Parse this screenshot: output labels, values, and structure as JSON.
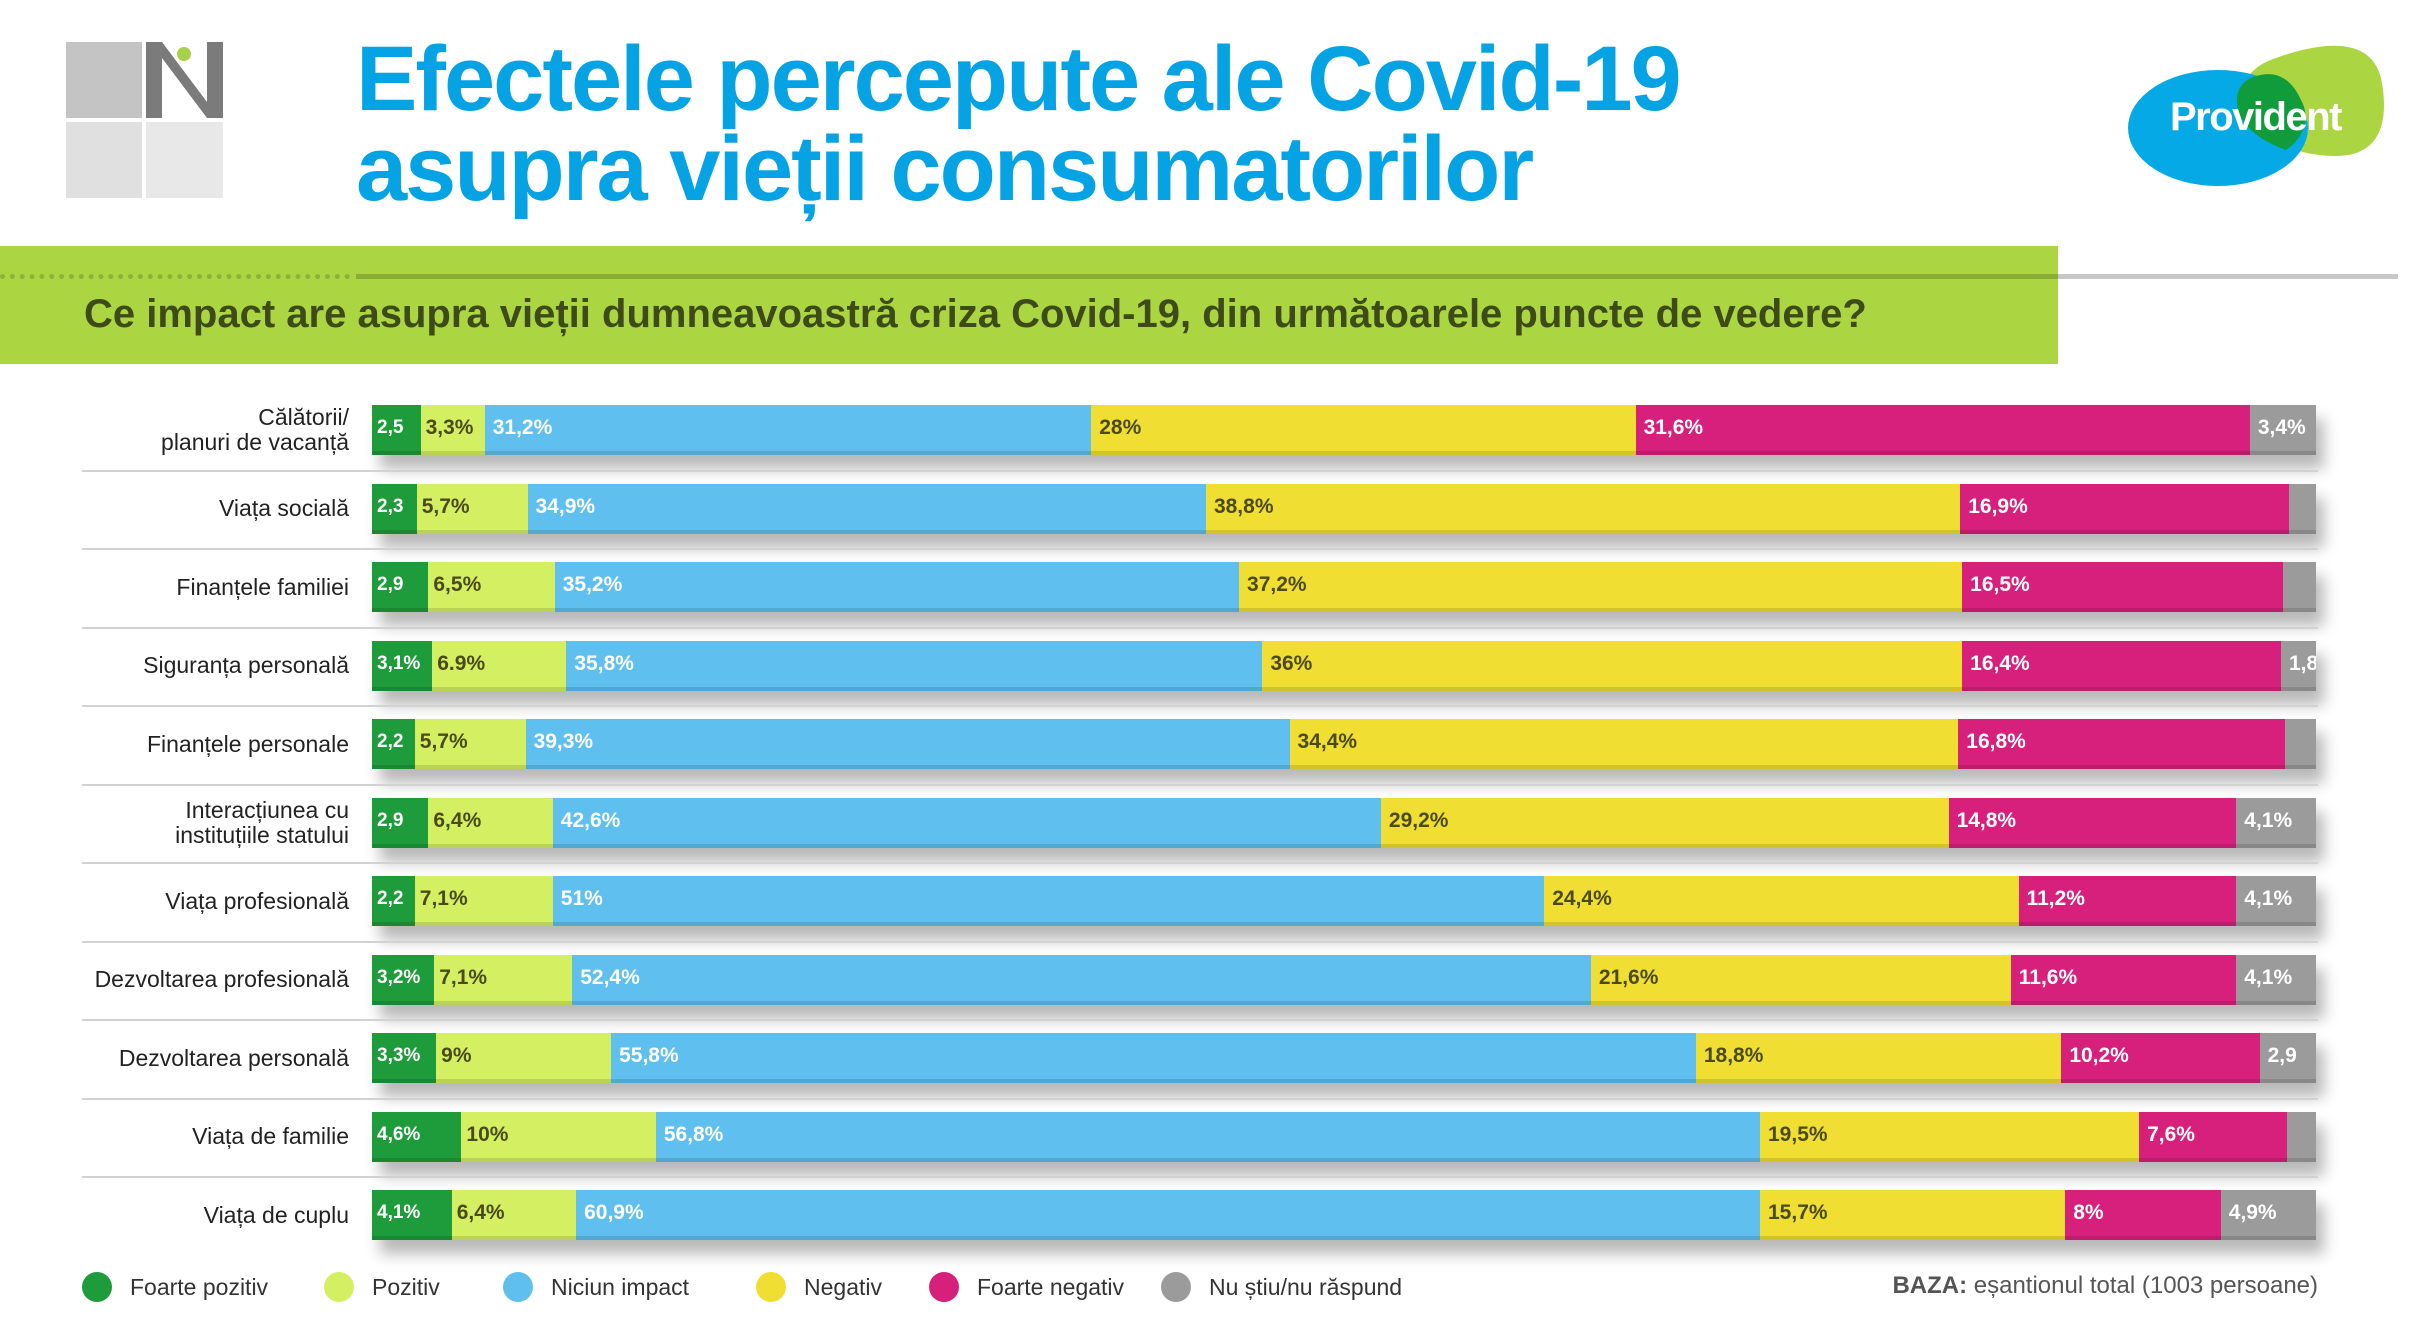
{
  "header": {
    "title_line1": "Efectele percepute ale Covid-19",
    "title_line2": "asupra vieții consumatorilor",
    "logo_left": "N",
    "logo_right": "Provident",
    "question": "Ce impact are asupra vieții dumneavoastră criza Covid-19, din următoarele puncte de vedere?"
  },
  "chart_data": {
    "type": "bar",
    "orientation": "horizontal",
    "stacked": true,
    "categories": [
      "Călătorii/\nplanuri de vacanță",
      "Viața socială",
      "Finanțele familiei",
      "Siguranța personală",
      "Finanțele personale",
      "Interacțiunea cu\ninstituțiile statului",
      "Viața profesională",
      "Dezvoltarea profesională",
      "Dezvoltarea personală",
      "Viața de familie",
      "Viața de cuplu"
    ],
    "series": [
      {
        "name": "Foarte pozitiv",
        "color": "#1e9b3a",
        "values": [
          2.5,
          2.3,
          2.9,
          3.1,
          2.2,
          2.9,
          2.2,
          3.2,
          3.3,
          4.6,
          4.1
        ],
        "labels": [
          "2,5",
          "2,3",
          "2,9",
          "3,1%",
          "2,2",
          "2,9",
          "2,2",
          "3,2%",
          "3,3%",
          "4,6%",
          "4,1%"
        ]
      },
      {
        "name": "Pozitiv",
        "color": "#d4f062",
        "values": [
          3.3,
          5.7,
          6.5,
          6.9,
          5.7,
          6.4,
          7.1,
          7.1,
          9,
          10,
          6.4
        ],
        "labels": [
          "3,3%",
          "5,7%",
          "6,5%",
          "6.9%",
          "5,7%",
          "6,4%",
          "7,1%",
          "7,1%",
          "9%",
          "10%",
          "6,4%"
        ]
      },
      {
        "name": "Niciun impact",
        "color": "#5fc0ef",
        "values": [
          31.2,
          34.9,
          35.2,
          35.8,
          39.3,
          42.6,
          51,
          52.4,
          55.8,
          56.8,
          60.9
        ],
        "labels": [
          "31,2%",
          "34,9%",
          "35,2%",
          "35,8%",
          "39,3%",
          "42,6%",
          "51%",
          "52,4%",
          "55,8%",
          "56,8%",
          "60,9%"
        ]
      },
      {
        "name": "Negativ",
        "color": "#f1de32",
        "values": [
          28,
          38.8,
          37.2,
          36,
          34.4,
          29.2,
          24.4,
          21.6,
          18.8,
          19.5,
          15.7
        ],
        "labels": [
          "28%",
          "38,8%",
          "37,2%",
          "36%",
          "34,4%",
          "29,2%",
          "24,4%",
          "21,6%",
          "18,8%",
          "19,5%",
          "15,7%"
        ]
      },
      {
        "name": "Foarte negativ",
        "color": "#d6207c",
        "values": [
          31.6,
          16.9,
          16.5,
          16.4,
          16.8,
          14.8,
          11.2,
          11.6,
          10.2,
          7.6,
          8
        ],
        "labels": [
          "31,6%",
          "16,9%",
          "16,5%",
          "16,4%",
          "16,8%",
          "14,8%",
          "11,2%",
          "11,6%",
          "10,2%",
          "7,6%",
          "8%"
        ]
      },
      {
        "name": "Nu știu/nu răspund",
        "color": "#9b9b9b",
        "values": [
          3.4,
          1.4,
          1.7,
          1.8,
          1.6,
          4.1,
          4.1,
          4.1,
          2.9,
          1.5,
          4.9
        ],
        "labels": [
          "3,4%",
          "",
          "",
          "1,8",
          "",
          "4,1%",
          "4,1%",
          "4,1%",
          "2,9",
          "",
          "4,9%"
        ]
      }
    ],
    "legend_position": "bottom-left",
    "xlim": [
      0,
      100
    ]
  },
  "footer": {
    "baza_label": "BAZA:",
    "baza_text": " eșantionul total (1003 persoane)"
  }
}
